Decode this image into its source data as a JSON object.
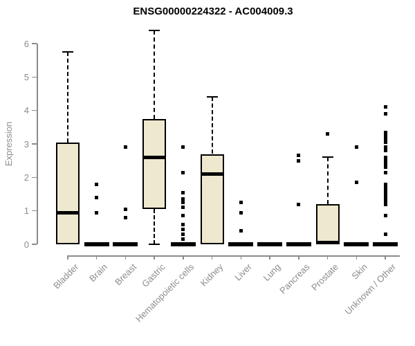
{
  "chart_data": {
    "type": "boxplot",
    "title": "ENSG00000224322 - AC004009.3",
    "ylabel": "Expression",
    "xlabel": "",
    "ylim": [
      0,
      6.5
    ],
    "yticks": [
      0,
      1,
      2,
      3,
      4,
      5,
      6
    ],
    "grid": false,
    "legend": null,
    "categories": [
      "Bladder",
      "Brain",
      "Breast",
      "Gastric",
      "Hematopoietic cells",
      "Kidney",
      "Liver",
      "Lung",
      "Pancreas",
      "Prostate",
      "Skin",
      "Unknown / Other"
    ],
    "series": [
      {
        "category": "Bladder",
        "q1": 0,
        "median": 0.95,
        "q3": 3.05,
        "whisker_low": 0,
        "whisker_high": 5.75,
        "outliers": []
      },
      {
        "category": "Brain",
        "q1": 0,
        "median": 0,
        "q3": 0,
        "whisker_low": 0,
        "whisker_high": 0,
        "outliers": [
          1.8,
          1.4,
          0.95
        ]
      },
      {
        "category": "Breast",
        "q1": 0,
        "median": 0,
        "q3": 0,
        "whisker_low": 0,
        "whisker_high": 0,
        "outliers": [
          2.9,
          1.05,
          0.8
        ]
      },
      {
        "category": "Gastric",
        "q1": 1.05,
        "median": 2.6,
        "q3": 3.75,
        "whisker_low": 0,
        "whisker_high": 6.4,
        "outliers": []
      },
      {
        "category": "Hematopoietic cells",
        "q1": 0,
        "median": 0,
        "q3": 0,
        "whisker_low": 0,
        "whisker_high": 0,
        "outliers": [
          2.9,
          2.15,
          1.55,
          1.35,
          1.25,
          1.1,
          0.85,
          0.6,
          0.45,
          0.3,
          0.15
        ]
      },
      {
        "category": "Kidney",
        "q1": 0,
        "median": 2.1,
        "q3": 2.7,
        "whisker_low": 0,
        "whisker_high": 4.4,
        "outliers": []
      },
      {
        "category": "Liver",
        "q1": 0,
        "median": 0,
        "q3": 0,
        "whisker_low": 0,
        "whisker_high": 0,
        "outliers": [
          1.25,
          0.95,
          0.4
        ]
      },
      {
        "category": "Lung",
        "q1": 0,
        "median": 0,
        "q3": 0,
        "whisker_low": 0,
        "whisker_high": 0,
        "outliers": []
      },
      {
        "category": "Pancreas",
        "q1": 0,
        "median": 0,
        "q3": 0,
        "whisker_low": 0,
        "whisker_high": 0,
        "outliers": [
          2.65,
          2.5,
          1.2
        ]
      },
      {
        "category": "Prostate",
        "q1": 0,
        "median": 0.05,
        "q3": 1.2,
        "whisker_low": 0,
        "whisker_high": 2.6,
        "outliers": [
          3.3
        ]
      },
      {
        "category": "Skin",
        "q1": 0,
        "median": 0,
        "q3": 0,
        "whisker_low": 0,
        "whisker_high": 0,
        "outliers": [
          2.9,
          1.85
        ]
      },
      {
        "category": "Unknown / Other",
        "q1": 0,
        "median": 0,
        "q3": 0,
        "whisker_low": 0,
        "whisker_high": 0,
        "outliers": [
          4.1,
          3.9,
          3.35,
          3.25,
          3.15,
          3.05,
          2.9,
          2.8,
          2.6,
          2.5,
          2.4,
          2.3,
          2.15,
          1.8,
          1.7,
          1.6,
          1.5,
          1.4,
          1.3,
          1.2,
          0.85,
          0.3
        ]
      }
    ],
    "colors": {
      "box_fill": "#EDE8CE",
      "box_border": "#000000",
      "median": "#000000",
      "outlier": "#000000",
      "axis": "#8A8A8A",
      "tick_label": "#8C8C8C",
      "title": "#000000"
    }
  }
}
